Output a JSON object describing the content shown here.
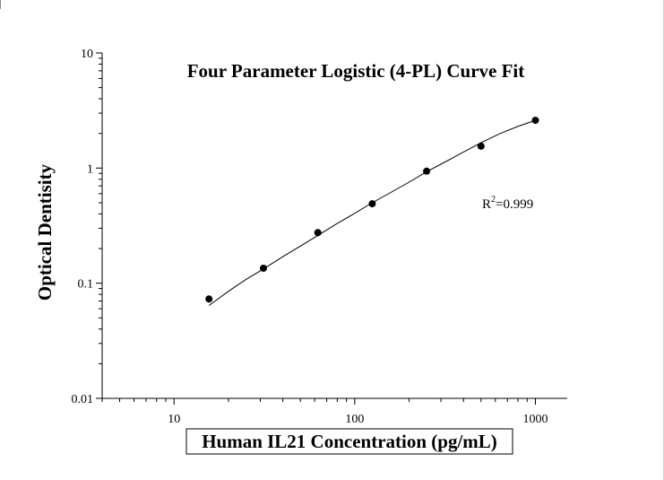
{
  "chart_data": {
    "type": "scatter",
    "title": "Four Parameter Logistic (4-PL) Curve Fit",
    "xlabel": "Human IL21 Concentration (pg/mL)",
    "ylabel": "Optical Dentisity",
    "x_scale": "log",
    "y_scale": "log",
    "xlim": [
      4,
      1500
    ],
    "ylim": [
      0.01,
      10
    ],
    "x_ticks": [
      {
        "value": 10,
        "label": "10"
      },
      {
        "value": 100,
        "label": "100"
      },
      {
        "value": 1000,
        "label": "1000"
      }
    ],
    "y_ticks": [
      {
        "value": 0.01,
        "label": "0.01"
      },
      {
        "value": 0.1,
        "label": "0.1"
      },
      {
        "value": 1,
        "label": "1"
      },
      {
        "value": 10,
        "label": "10"
      }
    ],
    "grid": false,
    "legend": "none",
    "series": [
      {
        "x": [
          15.6,
          31.25,
          62.5,
          125,
          250,
          500,
          1000
        ],
        "y": [
          0.073,
          0.135,
          0.275,
          0.49,
          0.94,
          1.55,
          2.6
        ]
      }
    ],
    "fit_curve": {
      "x": [
        15.6,
        20,
        25,
        31.25,
        40,
        50,
        62.5,
        80,
        100,
        125,
        160,
        200,
        250,
        320,
        400,
        500,
        640,
        800,
        1000
      ],
      "y": [
        0.064,
        0.085,
        0.108,
        0.133,
        0.17,
        0.21,
        0.26,
        0.33,
        0.405,
        0.5,
        0.62,
        0.755,
        0.93,
        1.14,
        1.38,
        1.66,
        2.0,
        2.3,
        2.6
      ]
    },
    "annotation": {
      "r2_base": "R",
      "r2_sup": "2",
      "r2_value": "=0.999"
    }
  }
}
